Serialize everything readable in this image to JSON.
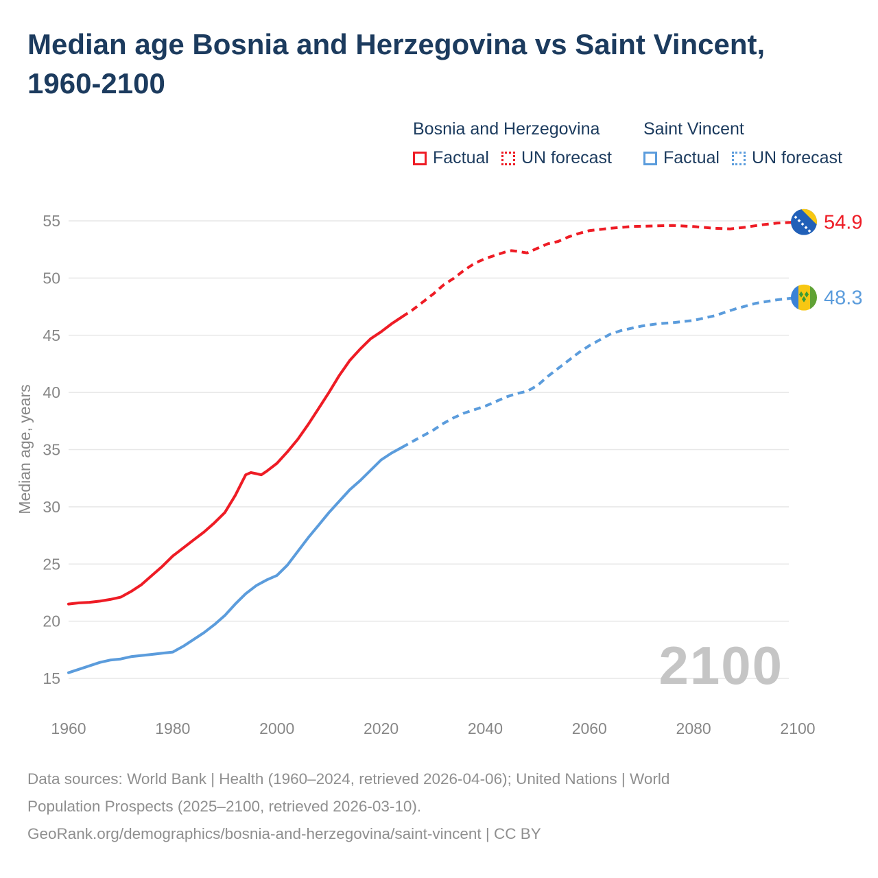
{
  "title": {
    "full": "Median age Bosnia and Herzegovina vs Saint Vincent, 1960-2100",
    "lines": [
      "Median age Bosnia and Herzegovina vs Saint Vincent,",
      "1960-2100"
    ]
  },
  "legend": {
    "groups": [
      {
        "name": "Bosnia and Herzegovina",
        "color": "#ee1c25",
        "items": [
          {
            "label": "Factual",
            "style": "solid"
          },
          {
            "label": "UN forecast",
            "style": "dotted"
          }
        ]
      },
      {
        "name": "Saint Vincent",
        "color": "#5b9cdc",
        "items": [
          {
            "label": "Factual",
            "style": "solid"
          },
          {
            "label": "UN forecast",
            "style": "dotted"
          }
        ]
      }
    ]
  },
  "chart_data": {
    "type": "line",
    "title": "Median age Bosnia and Herzegovina vs Saint Vincent, 1960-2100",
    "xlabel": "",
    "ylabel": "Median age, years",
    "watermark": "2100",
    "grid": "horizontal",
    "legend_position": "top-right",
    "xlim": [
      1960,
      2100
    ],
    "ylim": [
      15,
      55
    ],
    "x_ticks": [
      1960,
      1980,
      2000,
      2020,
      2040,
      2060,
      2080,
      2100
    ],
    "y_ticks": [
      15,
      20,
      25,
      30,
      35,
      40,
      45,
      50,
      55
    ],
    "series": [
      {
        "name": "Bosnia and Herzegovina — Factual",
        "color": "#ee1c25",
        "style": "solid",
        "points": [
          [
            1960,
            21.5
          ],
          [
            1962,
            21.6
          ],
          [
            1964,
            21.65
          ],
          [
            1966,
            21.75
          ],
          [
            1968,
            21.9
          ],
          [
            1970,
            22.1
          ],
          [
            1972,
            22.6
          ],
          [
            1974,
            23.2
          ],
          [
            1976,
            24.0
          ],
          [
            1978,
            24.8
          ],
          [
            1980,
            25.7
          ],
          [
            1982,
            26.4
          ],
          [
            1984,
            27.1
          ],
          [
            1986,
            27.8
          ],
          [
            1988,
            28.6
          ],
          [
            1990,
            29.5
          ],
          [
            1992,
            31.0
          ],
          [
            1994,
            32.8
          ],
          [
            1995,
            33.0
          ],
          [
            1996,
            32.9
          ],
          [
            1997,
            32.8
          ],
          [
            1998,
            33.1
          ],
          [
            2000,
            33.8
          ],
          [
            2002,
            34.8
          ],
          [
            2004,
            35.9
          ],
          [
            2006,
            37.2
          ],
          [
            2008,
            38.6
          ],
          [
            2010,
            40.0
          ],
          [
            2012,
            41.5
          ],
          [
            2014,
            42.8
          ],
          [
            2016,
            43.8
          ],
          [
            2018,
            44.7
          ],
          [
            2020,
            45.3
          ],
          [
            2022,
            46.0
          ],
          [
            2024,
            46.6
          ]
        ]
      },
      {
        "name": "Bosnia and Herzegovina — UN forecast",
        "color": "#ee1c25",
        "style": "dashed",
        "points": [
          [
            2024,
            46.6
          ],
          [
            2026,
            47.2
          ],
          [
            2028,
            47.9
          ],
          [
            2030,
            48.6
          ],
          [
            2032,
            49.4
          ],
          [
            2034,
            50.0
          ],
          [
            2036,
            50.7
          ],
          [
            2038,
            51.3
          ],
          [
            2040,
            51.7
          ],
          [
            2042,
            52.0
          ],
          [
            2044,
            52.3
          ],
          [
            2045,
            52.4
          ],
          [
            2046,
            52.35
          ],
          [
            2048,
            52.2
          ],
          [
            2050,
            52.6
          ],
          [
            2052,
            53.0
          ],
          [
            2054,
            53.2
          ],
          [
            2056,
            53.6
          ],
          [
            2058,
            53.9
          ],
          [
            2060,
            54.15
          ],
          [
            2064,
            54.35
          ],
          [
            2068,
            54.5
          ],
          [
            2072,
            54.55
          ],
          [
            2076,
            54.6
          ],
          [
            2080,
            54.5
          ],
          [
            2084,
            54.35
          ],
          [
            2087,
            54.3
          ],
          [
            2090,
            54.45
          ],
          [
            2093,
            54.65
          ],
          [
            2096,
            54.8
          ],
          [
            2100,
            54.9
          ]
        ]
      },
      {
        "name": "Saint Vincent — Factual",
        "color": "#5b9cdc",
        "style": "solid",
        "points": [
          [
            1960,
            15.5
          ],
          [
            1962,
            15.8
          ],
          [
            1964,
            16.1
          ],
          [
            1966,
            16.4
          ],
          [
            1968,
            16.6
          ],
          [
            1970,
            16.7
          ],
          [
            1972,
            16.9
          ],
          [
            1974,
            17.0
          ],
          [
            1976,
            17.1
          ],
          [
            1978,
            17.2
          ],
          [
            1980,
            17.3
          ],
          [
            1982,
            17.8
          ],
          [
            1984,
            18.4
          ],
          [
            1986,
            19.0
          ],
          [
            1988,
            19.7
          ],
          [
            1990,
            20.5
          ],
          [
            1992,
            21.5
          ],
          [
            1994,
            22.4
          ],
          [
            1996,
            23.1
          ],
          [
            1998,
            23.6
          ],
          [
            2000,
            24.0
          ],
          [
            2002,
            24.9
          ],
          [
            2004,
            26.1
          ],
          [
            2006,
            27.3
          ],
          [
            2008,
            28.4
          ],
          [
            2010,
            29.5
          ],
          [
            2012,
            30.5
          ],
          [
            2014,
            31.5
          ],
          [
            2016,
            32.3
          ],
          [
            2018,
            33.2
          ],
          [
            2020,
            34.1
          ],
          [
            2022,
            34.7
          ],
          [
            2024,
            35.2
          ]
        ]
      },
      {
        "name": "Saint Vincent — UN forecast",
        "color": "#5b9cdc",
        "style": "dashed",
        "points": [
          [
            2024,
            35.2
          ],
          [
            2026,
            35.7
          ],
          [
            2028,
            36.2
          ],
          [
            2030,
            36.7
          ],
          [
            2032,
            37.3
          ],
          [
            2034,
            37.8
          ],
          [
            2036,
            38.2
          ],
          [
            2038,
            38.5
          ],
          [
            2040,
            38.8
          ],
          [
            2042,
            39.2
          ],
          [
            2044,
            39.6
          ],
          [
            2046,
            39.9
          ],
          [
            2048,
            40.1
          ],
          [
            2050,
            40.6
          ],
          [
            2052,
            41.4
          ],
          [
            2054,
            42.1
          ],
          [
            2056,
            42.8
          ],
          [
            2058,
            43.5
          ],
          [
            2060,
            44.1
          ],
          [
            2062,
            44.6
          ],
          [
            2064,
            45.1
          ],
          [
            2066,
            45.4
          ],
          [
            2068,
            45.6
          ],
          [
            2070,
            45.8
          ],
          [
            2073,
            46.0
          ],
          [
            2076,
            46.1
          ],
          [
            2080,
            46.3
          ],
          [
            2084,
            46.7
          ],
          [
            2088,
            47.3
          ],
          [
            2092,
            47.8
          ],
          [
            2096,
            48.1
          ],
          [
            2100,
            48.3
          ]
        ]
      }
    ],
    "end_labels": [
      {
        "text": "54.9",
        "value": 54.9,
        "color": "#ee1c25",
        "flag": "bosnia-and-herzegovina"
      },
      {
        "text": "48.3",
        "value": 48.3,
        "color": "#5b9cdc",
        "flag": "saint-vincent"
      }
    ]
  },
  "footer": {
    "lines": [
      "Data sources: World Bank | Health (1960–2024, retrieved 2026-04-06); United Nations | World",
      "Population Prospects (2025–2100, retrieved 2026-03-10).",
      "GeoRank.org/demographics/bosnia-and-herzegovina/saint-vincent | CC BY"
    ]
  }
}
